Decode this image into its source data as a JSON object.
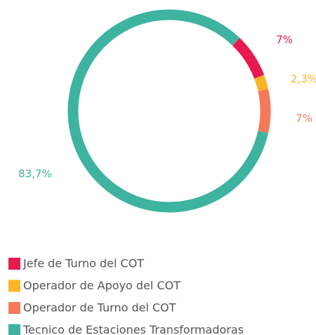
{
  "chart_data": {
    "type": "donut",
    "categories": [
      "Jefe de Turno del COT",
      "Operador de Apoyo del COT",
      "Operador de Turno del COT",
      "Tecnico de Estaciones Transformadoras"
    ],
    "values": [
      7,
      2.3,
      7,
      83.7
    ],
    "value_labels": [
      "7%",
      "2,3%",
      "7%",
      "83,7%"
    ],
    "colors": [
      "#e8194f",
      "#fbb526",
      "#f47a5b",
      "#3eb3a0"
    ],
    "legend": "bottom-left"
  }
}
